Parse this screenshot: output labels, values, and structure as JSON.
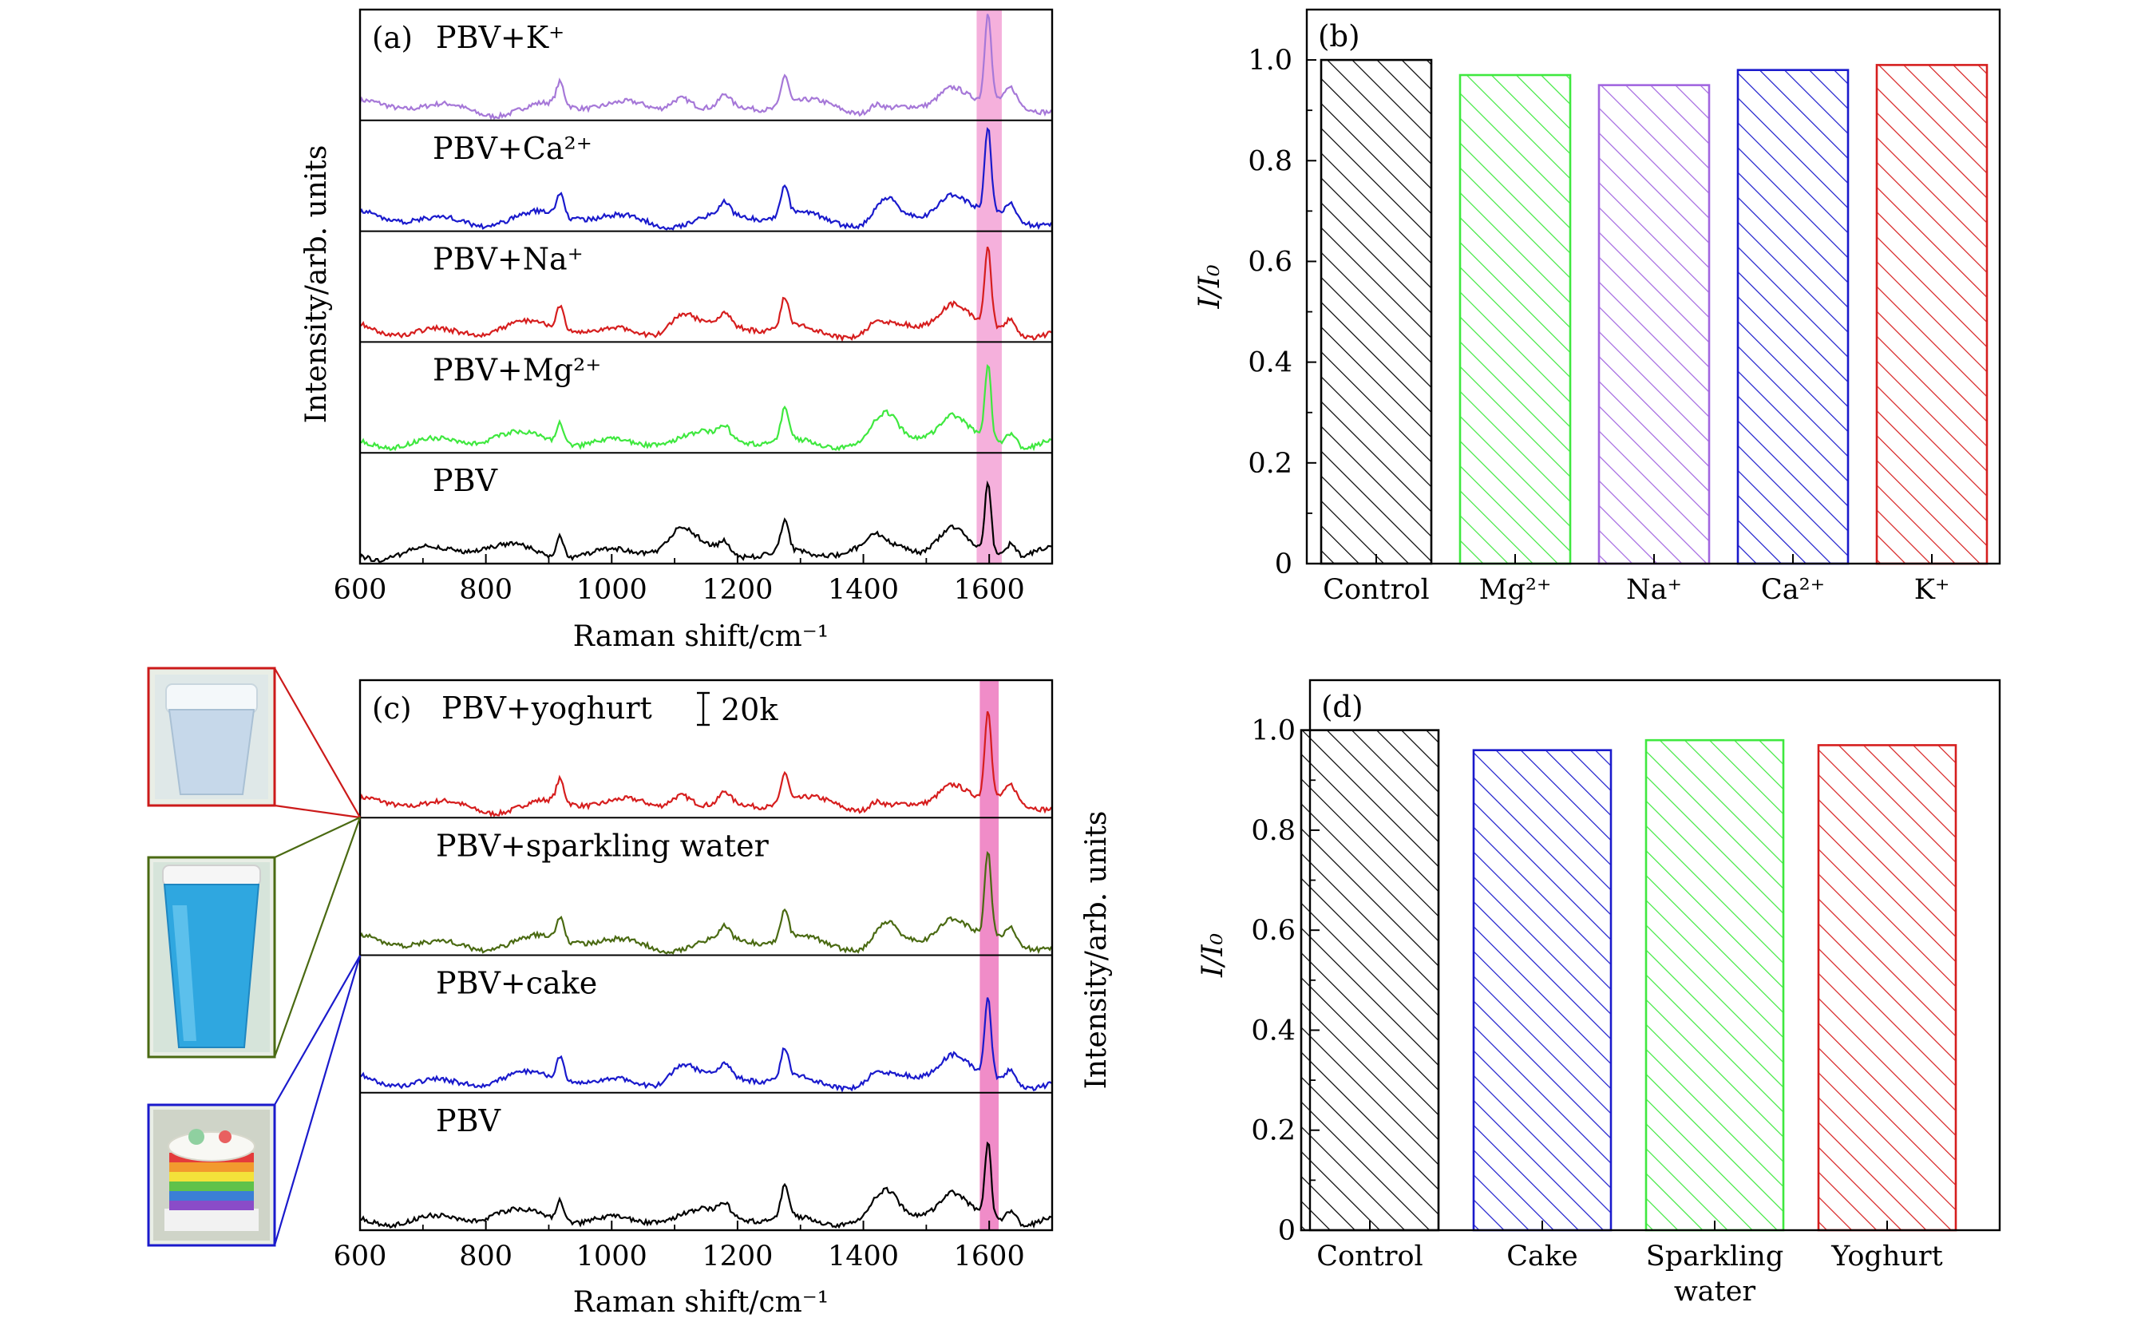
{
  "panels": {
    "a": {
      "panel_label": "(a)",
      "xlabel": "Raman shift/cm⁻¹",
      "ylabel": "Intensity/arb. units",
      "xlim": [
        600,
        1700
      ],
      "xticks": [
        "600",
        "800",
        "1000",
        "1200",
        "1400",
        "1600"
      ],
      "xtick_values": [
        600,
        800,
        1000,
        1200,
        1400,
        1600
      ],
      "highlight_band": [
        1580,
        1620
      ],
      "highlight_color": "#f5b0dc",
      "traces": [
        {
          "label": "PBV+K⁺",
          "color": "#a678d8"
        },
        {
          "label": "PBV+Ca²⁺",
          "color": "#1a1acc"
        },
        {
          "label": "PBV+Na⁺",
          "color": "#d61e1e"
        },
        {
          "label": "PBV+Mg²⁺",
          "color": "#3fe83f"
        },
        {
          "label": "PBV",
          "color": "#000000"
        }
      ]
    },
    "c": {
      "panel_label": "(c)",
      "xlabel": "Raman shift/cm⁻¹",
      "ylabel": "Intensity/arb. units",
      "scale_bar_label": "20k",
      "xlim": [
        600,
        1700
      ],
      "xticks": [
        "600",
        "800",
        "1000",
        "1200",
        "1400",
        "1600"
      ],
      "xtick_values": [
        600,
        800,
        1000,
        1200,
        1400,
        1600
      ],
      "highlight_band": [
        1585,
        1615
      ],
      "highlight_color": "#f08cc8",
      "traces": [
        {
          "label": "PBV+yoghurt",
          "color": "#d61e1e"
        },
        {
          "label": "PBV+sparkling water",
          "color": "#4a6a12"
        },
        {
          "label": "PBV+cake",
          "color": "#1a1acc"
        },
        {
          "label": "PBV",
          "color": "#000000"
        }
      ],
      "thumbnails": [
        {
          "name": "yoghurt-cup-photo",
          "frame_color": "#cc1a1a"
        },
        {
          "name": "sparkling-water-cup-photo",
          "frame_color": "#4a6a12"
        },
        {
          "name": "rainbow-cake-photo",
          "frame_color": "#1a1acc"
        }
      ]
    }
  },
  "chart_data": [
    {
      "type": "bar",
      "panel_label": "(b)",
      "categories": [
        "Control",
        "Mg²⁺",
        "Na⁺",
        "Ca²⁺",
        "K⁺"
      ],
      "category_lines": [
        [
          "Control"
        ],
        [
          "Mg²⁺"
        ],
        [
          "Na⁺"
        ],
        [
          "Ca²⁺"
        ],
        [
          "K⁺"
        ]
      ],
      "values": [
        1.0,
        0.97,
        0.95,
        0.98,
        0.99
      ],
      "colors": [
        "#000000",
        "#3fe83f",
        "#a266e0",
        "#1a1acc",
        "#d61e1e"
      ],
      "ylabel": "I/I₀",
      "ylim": [
        0,
        1.1
      ],
      "yticks": [
        "0",
        "0.2",
        "0.4",
        "0.6",
        "0.8",
        "1.0"
      ],
      "ytick_values": [
        0,
        0.2,
        0.4,
        0.6,
        0.8,
        1.0
      ],
      "fill": "hatched"
    },
    {
      "type": "bar",
      "panel_label": "(d)",
      "categories": [
        "Control",
        "Cake",
        "Sparkling water",
        "Yoghurt"
      ],
      "category_lines": [
        [
          "Control"
        ],
        [
          "Cake"
        ],
        [
          "Sparkling",
          "water"
        ],
        [
          "Yoghurt"
        ]
      ],
      "values": [
        1.0,
        0.96,
        0.98,
        0.97
      ],
      "colors": [
        "#000000",
        "#1a1acc",
        "#3fe83f",
        "#d61e1e"
      ],
      "ylabel": "I/I₀",
      "ylim": [
        0,
        1.1
      ],
      "yticks": [
        "0",
        "0.2",
        "0.4",
        "0.6",
        "0.8",
        "1.0"
      ],
      "ytick_values": [
        0,
        0.2,
        0.4,
        0.6,
        0.8,
        1.0
      ],
      "fill": "hatched"
    }
  ]
}
